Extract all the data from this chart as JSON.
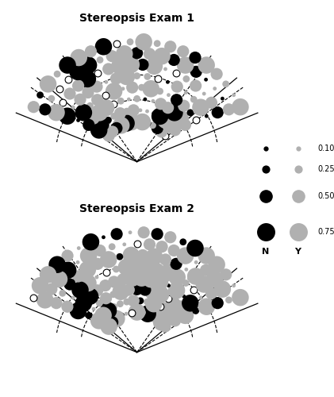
{
  "title1": "Stereopsis Exam 1",
  "title2": "Stereopsis Exam 2",
  "legend_sizes": [
    0.1,
    0.25,
    0.5,
    0.75
  ],
  "legend_labels": [
    "0.10",
    "0.25",
    "0.50",
    "0.75"
  ],
  "N_label": "N",
  "Y_label": "Y",
  "black_color": "#000000",
  "gray_color": "#b0b0b0",
  "white_color": "#ffffff",
  "base_marker_scale": 80
}
